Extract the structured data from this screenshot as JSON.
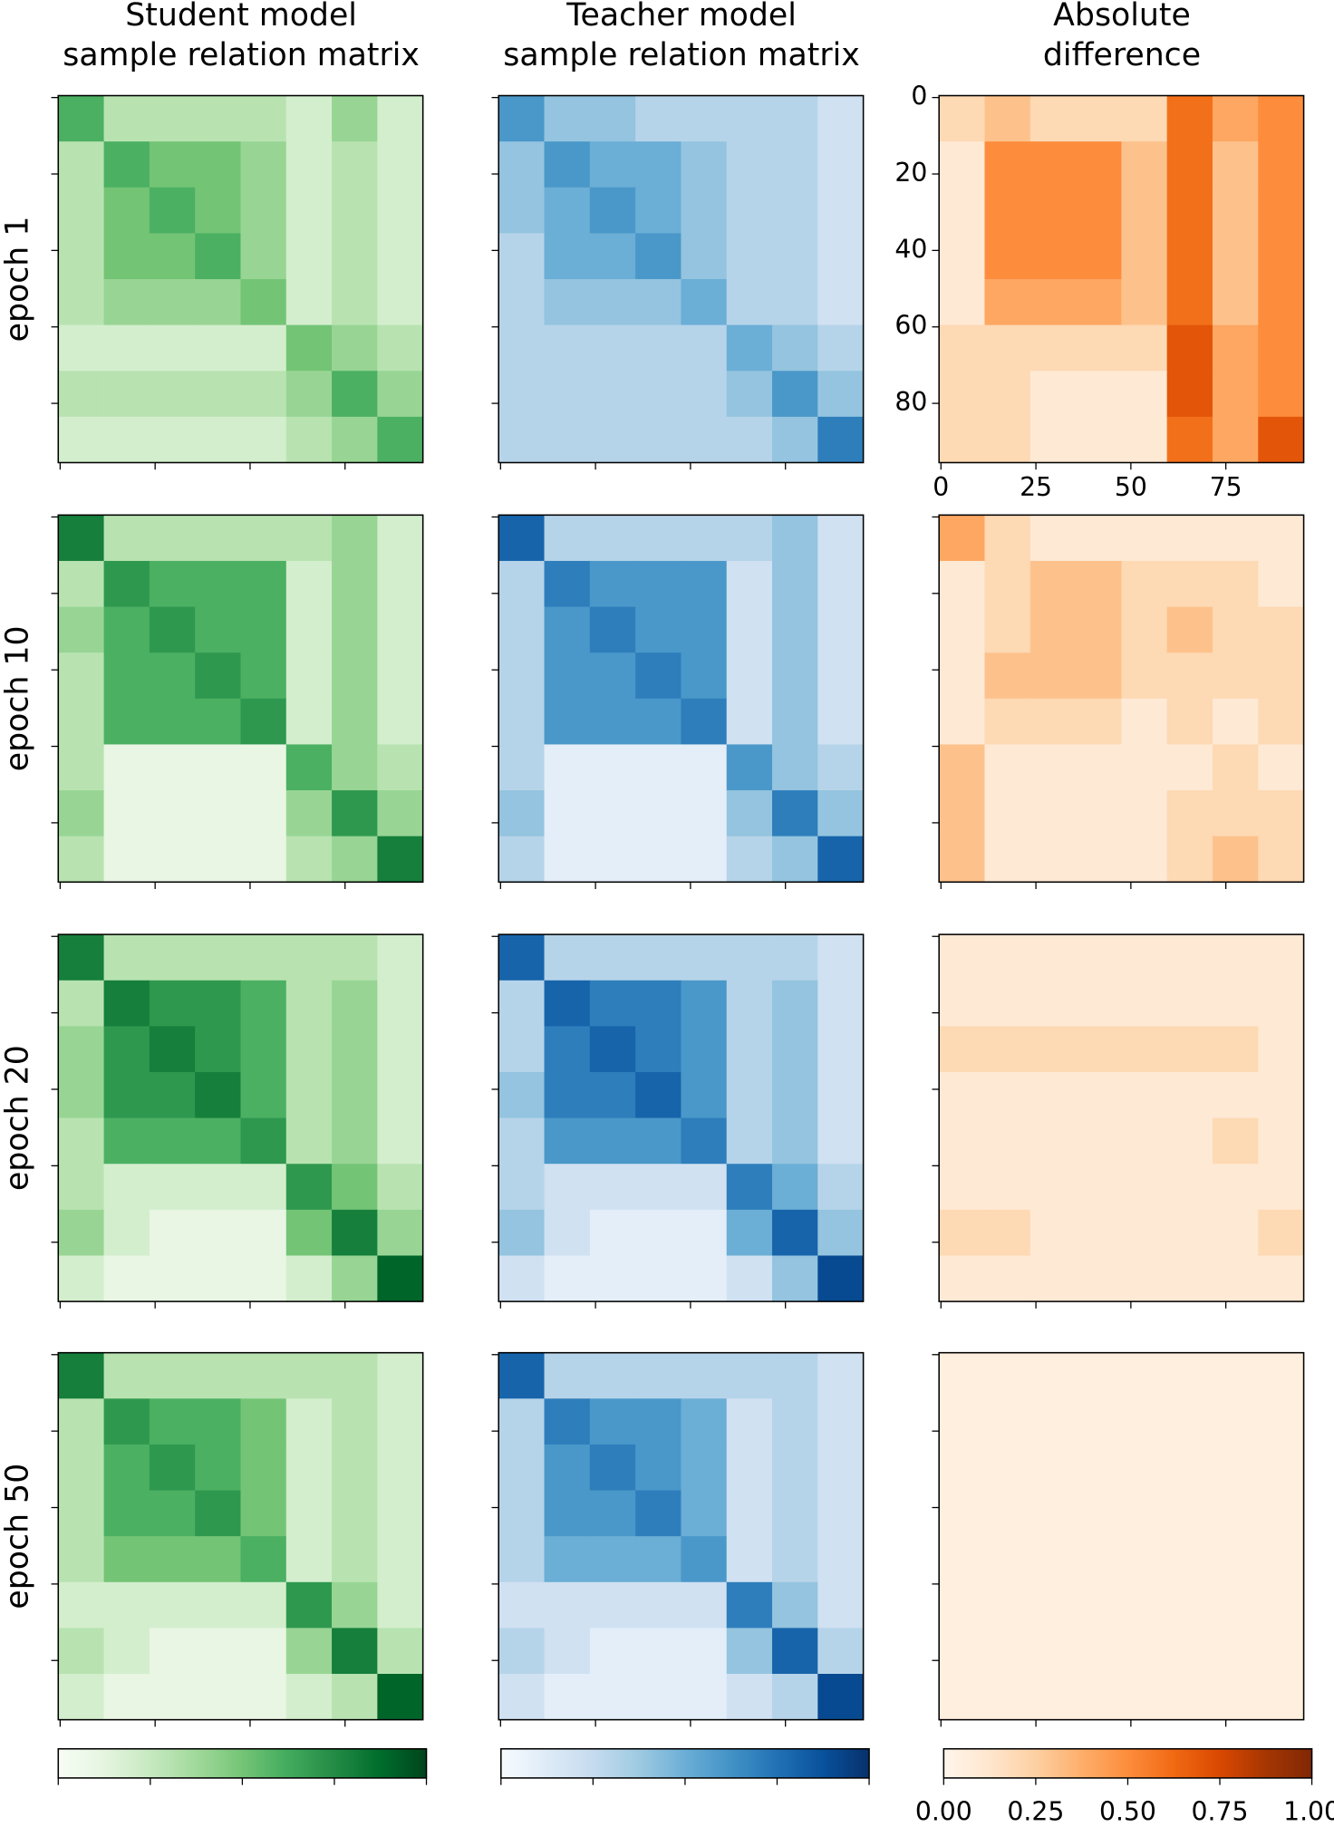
{
  "column_titles": [
    "Student model\nsample relation matrix",
    "Teacher model\nsample relation matrix",
    "Absolute\ndifference"
  ],
  "row_labels": [
    "epoch 1",
    "epoch 10",
    "epoch 20",
    "epoch 50"
  ],
  "chart_data": [
    {
      "type": "heatmap",
      "cmap": "Greens",
      "xlim": [
        -0.5,
        95.5
      ],
      "ylim": [
        95.5,
        -0.5
      ],
      "xticks": [
        0,
        25,
        50,
        75
      ],
      "yticks": [
        0,
        20,
        40,
        60,
        80
      ],
      "tick_labels": false,
      "values": [
        [
          0.6,
          0.3,
          0.3,
          0.3,
          0.3,
          0.2,
          0.4,
          0.2
        ],
        [
          0.3,
          0.6,
          0.5,
          0.5,
          0.4,
          0.2,
          0.3,
          0.2
        ],
        [
          0.3,
          0.5,
          0.6,
          0.5,
          0.4,
          0.2,
          0.3,
          0.2
        ],
        [
          0.3,
          0.5,
          0.5,
          0.6,
          0.4,
          0.2,
          0.3,
          0.2
        ],
        [
          0.3,
          0.4,
          0.4,
          0.4,
          0.5,
          0.2,
          0.3,
          0.2
        ],
        [
          0.2,
          0.2,
          0.2,
          0.2,
          0.2,
          0.5,
          0.4,
          0.3
        ],
        [
          0.3,
          0.3,
          0.3,
          0.3,
          0.3,
          0.4,
          0.6,
          0.4
        ],
        [
          0.2,
          0.2,
          0.2,
          0.2,
          0.2,
          0.3,
          0.4,
          0.6
        ]
      ]
    },
    {
      "type": "heatmap",
      "cmap": "Blues",
      "xlim": [
        -0.5,
        95.5
      ],
      "ylim": [
        95.5,
        -0.5
      ],
      "xticks": [
        0,
        25,
        50,
        75
      ],
      "yticks": [
        0,
        20,
        40,
        60,
        80
      ],
      "tick_labels": false,
      "values": [
        [
          0.6,
          0.4,
          0.4,
          0.3,
          0.3,
          0.3,
          0.3,
          0.2
        ],
        [
          0.4,
          0.6,
          0.5,
          0.5,
          0.4,
          0.3,
          0.3,
          0.2
        ],
        [
          0.4,
          0.5,
          0.6,
          0.5,
          0.4,
          0.3,
          0.3,
          0.2
        ],
        [
          0.3,
          0.5,
          0.5,
          0.6,
          0.4,
          0.3,
          0.3,
          0.2
        ],
        [
          0.3,
          0.4,
          0.4,
          0.4,
          0.5,
          0.3,
          0.3,
          0.2
        ],
        [
          0.3,
          0.3,
          0.3,
          0.3,
          0.3,
          0.5,
          0.4,
          0.3
        ],
        [
          0.3,
          0.3,
          0.3,
          0.3,
          0.3,
          0.4,
          0.6,
          0.4
        ],
        [
          0.3,
          0.3,
          0.3,
          0.3,
          0.3,
          0.3,
          0.4,
          0.7
        ]
      ]
    },
    {
      "type": "heatmap",
      "cmap": "Oranges",
      "xlim": [
        -0.5,
        95.5
      ],
      "ylim": [
        95.5,
        -0.5
      ],
      "xticks": [
        0,
        25,
        50,
        75
      ],
      "yticks": [
        0,
        20,
        40,
        60,
        80
      ],
      "tick_labels": true,
      "values": [
        [
          0.2,
          0.3,
          0.2,
          0.2,
          0.2,
          0.6,
          0.4,
          0.5
        ],
        [
          0.1,
          0.5,
          0.5,
          0.5,
          0.3,
          0.6,
          0.3,
          0.5
        ],
        [
          0.1,
          0.5,
          0.5,
          0.5,
          0.3,
          0.6,
          0.3,
          0.5
        ],
        [
          0.1,
          0.5,
          0.5,
          0.5,
          0.3,
          0.6,
          0.3,
          0.5
        ],
        [
          0.1,
          0.4,
          0.4,
          0.4,
          0.3,
          0.6,
          0.3,
          0.5
        ],
        [
          0.2,
          0.2,
          0.2,
          0.2,
          0.2,
          0.7,
          0.4,
          0.5
        ],
        [
          0.2,
          0.2,
          0.1,
          0.1,
          0.1,
          0.7,
          0.4,
          0.5
        ],
        [
          0.2,
          0.2,
          0.1,
          0.1,
          0.1,
          0.6,
          0.4,
          0.7
        ]
      ]
    },
    {
      "type": "heatmap",
      "cmap": "Greens",
      "xlim": [
        -0.5,
        95.5
      ],
      "ylim": [
        95.5,
        -0.5
      ],
      "xticks": [
        0,
        25,
        50,
        75
      ],
      "yticks": [
        0,
        20,
        40,
        60,
        80
      ],
      "tick_labels": false,
      "values": [
        [
          0.8,
          0.3,
          0.3,
          0.3,
          0.3,
          0.3,
          0.4,
          0.2
        ],
        [
          0.3,
          0.7,
          0.6,
          0.6,
          0.6,
          0.2,
          0.4,
          0.2
        ],
        [
          0.4,
          0.6,
          0.7,
          0.6,
          0.6,
          0.2,
          0.4,
          0.2
        ],
        [
          0.3,
          0.6,
          0.6,
          0.7,
          0.6,
          0.2,
          0.4,
          0.2
        ],
        [
          0.3,
          0.6,
          0.6,
          0.6,
          0.7,
          0.2,
          0.4,
          0.2
        ],
        [
          0.3,
          0.1,
          0.1,
          0.1,
          0.1,
          0.6,
          0.4,
          0.3
        ],
        [
          0.4,
          0.1,
          0.1,
          0.1,
          0.1,
          0.4,
          0.7,
          0.4
        ],
        [
          0.3,
          0.1,
          0.1,
          0.1,
          0.1,
          0.3,
          0.4,
          0.8
        ]
      ]
    },
    {
      "type": "heatmap",
      "cmap": "Blues",
      "xlim": [
        -0.5,
        95.5
      ],
      "ylim": [
        95.5,
        -0.5
      ],
      "xticks": [
        0,
        25,
        50,
        75
      ],
      "yticks": [
        0,
        20,
        40,
        60,
        80
      ],
      "tick_labels": false,
      "values": [
        [
          0.8,
          0.3,
          0.3,
          0.3,
          0.3,
          0.3,
          0.4,
          0.2
        ],
        [
          0.3,
          0.7,
          0.6,
          0.6,
          0.6,
          0.2,
          0.4,
          0.2
        ],
        [
          0.3,
          0.6,
          0.7,
          0.6,
          0.6,
          0.2,
          0.4,
          0.2
        ],
        [
          0.3,
          0.6,
          0.6,
          0.7,
          0.6,
          0.2,
          0.4,
          0.2
        ],
        [
          0.3,
          0.6,
          0.6,
          0.6,
          0.7,
          0.2,
          0.4,
          0.2
        ],
        [
          0.3,
          0.1,
          0.1,
          0.1,
          0.1,
          0.6,
          0.4,
          0.3
        ],
        [
          0.4,
          0.1,
          0.1,
          0.1,
          0.1,
          0.4,
          0.7,
          0.4
        ],
        [
          0.3,
          0.1,
          0.1,
          0.1,
          0.1,
          0.3,
          0.4,
          0.8
        ]
      ]
    },
    {
      "type": "heatmap",
      "cmap": "Oranges",
      "xlim": [
        -0.5,
        95.5
      ],
      "ylim": [
        95.5,
        -0.5
      ],
      "xticks": [
        0,
        25,
        50,
        75
      ],
      "yticks": [
        0,
        20,
        40,
        60,
        80
      ],
      "tick_labels": false,
      "values": [
        [
          0.4,
          0.2,
          0.1,
          0.1,
          0.1,
          0.1,
          0.1,
          0.1
        ],
        [
          0.1,
          0.2,
          0.3,
          0.3,
          0.2,
          0.2,
          0.2,
          0.1
        ],
        [
          0.1,
          0.2,
          0.3,
          0.3,
          0.2,
          0.3,
          0.2,
          0.2
        ],
        [
          0.1,
          0.3,
          0.3,
          0.3,
          0.2,
          0.2,
          0.2,
          0.2
        ],
        [
          0.1,
          0.2,
          0.2,
          0.2,
          0.1,
          0.2,
          0.1,
          0.2
        ],
        [
          0.3,
          0.1,
          0.1,
          0.1,
          0.1,
          0.1,
          0.2,
          0.1
        ],
        [
          0.3,
          0.1,
          0.1,
          0.1,
          0.1,
          0.2,
          0.2,
          0.2
        ],
        [
          0.3,
          0.1,
          0.1,
          0.1,
          0.1,
          0.2,
          0.3,
          0.2
        ]
      ]
    },
    {
      "type": "heatmap",
      "cmap": "Greens",
      "xlim": [
        -0.5,
        95.5
      ],
      "ylim": [
        95.5,
        -0.5
      ],
      "xticks": [
        0,
        25,
        50,
        75
      ],
      "yticks": [
        0,
        20,
        40,
        60,
        80
      ],
      "tick_labels": false,
      "values": [
        [
          0.8,
          0.3,
          0.3,
          0.3,
          0.3,
          0.3,
          0.3,
          0.2
        ],
        [
          0.3,
          0.8,
          0.7,
          0.7,
          0.6,
          0.3,
          0.4,
          0.2
        ],
        [
          0.4,
          0.7,
          0.8,
          0.7,
          0.6,
          0.3,
          0.4,
          0.2
        ],
        [
          0.4,
          0.7,
          0.7,
          0.8,
          0.6,
          0.3,
          0.4,
          0.2
        ],
        [
          0.3,
          0.6,
          0.6,
          0.6,
          0.7,
          0.3,
          0.4,
          0.2
        ],
        [
          0.3,
          0.2,
          0.2,
          0.2,
          0.2,
          0.7,
          0.5,
          0.3
        ],
        [
          0.4,
          0.2,
          0.1,
          0.1,
          0.1,
          0.5,
          0.8,
          0.4
        ],
        [
          0.2,
          0.1,
          0.1,
          0.1,
          0.1,
          0.2,
          0.4,
          0.9
        ]
      ]
    },
    {
      "type": "heatmap",
      "cmap": "Blues",
      "xlim": [
        -0.5,
        95.5
      ],
      "ylim": [
        95.5,
        -0.5
      ],
      "xticks": [
        0,
        25,
        50,
        75
      ],
      "yticks": [
        0,
        20,
        40,
        60,
        80
      ],
      "tick_labels": false,
      "values": [
        [
          0.8,
          0.3,
          0.3,
          0.3,
          0.3,
          0.3,
          0.3,
          0.2
        ],
        [
          0.3,
          0.8,
          0.7,
          0.7,
          0.6,
          0.3,
          0.4,
          0.2
        ],
        [
          0.3,
          0.7,
          0.8,
          0.7,
          0.6,
          0.3,
          0.4,
          0.2
        ],
        [
          0.4,
          0.7,
          0.7,
          0.8,
          0.6,
          0.3,
          0.4,
          0.2
        ],
        [
          0.3,
          0.6,
          0.6,
          0.6,
          0.7,
          0.3,
          0.4,
          0.2
        ],
        [
          0.3,
          0.2,
          0.2,
          0.2,
          0.2,
          0.7,
          0.5,
          0.3
        ],
        [
          0.4,
          0.2,
          0.1,
          0.1,
          0.1,
          0.5,
          0.8,
          0.4
        ],
        [
          0.2,
          0.1,
          0.1,
          0.1,
          0.1,
          0.2,
          0.4,
          0.9
        ]
      ]
    },
    {
      "type": "heatmap",
      "cmap": "Oranges",
      "xlim": [
        -0.5,
        95.5
      ],
      "ylim": [
        95.5,
        -0.5
      ],
      "xticks": [
        0,
        25,
        50,
        75
      ],
      "yticks": [
        0,
        20,
        40,
        60,
        80
      ],
      "tick_labels": false,
      "values": [
        [
          0.1,
          0.1,
          0.1,
          0.1,
          0.1,
          0.1,
          0.1,
          0.1
        ],
        [
          0.1,
          0.1,
          0.1,
          0.1,
          0.1,
          0.1,
          0.1,
          0.1
        ],
        [
          0.2,
          0.2,
          0.2,
          0.2,
          0.2,
          0.2,
          0.2,
          0.1
        ],
        [
          0.1,
          0.1,
          0.1,
          0.1,
          0.1,
          0.1,
          0.1,
          0.1
        ],
        [
          0.1,
          0.1,
          0.1,
          0.1,
          0.1,
          0.1,
          0.2,
          0.1
        ],
        [
          0.1,
          0.1,
          0.1,
          0.1,
          0.1,
          0.1,
          0.1,
          0.1
        ],
        [
          0.2,
          0.2,
          0.1,
          0.1,
          0.1,
          0.1,
          0.1,
          0.2
        ],
        [
          0.1,
          0.1,
          0.1,
          0.1,
          0.1,
          0.1,
          0.1,
          0.1
        ]
      ]
    },
    {
      "type": "heatmap",
      "cmap": "Greens",
      "xlim": [
        -0.5,
        95.5
      ],
      "ylim": [
        95.5,
        -0.5
      ],
      "xticks": [
        0,
        25,
        50,
        75
      ],
      "yticks": [
        0,
        20,
        40,
        60,
        80
      ],
      "tick_labels": false,
      "values": [
        [
          0.8,
          0.3,
          0.3,
          0.3,
          0.3,
          0.3,
          0.3,
          0.2
        ],
        [
          0.3,
          0.7,
          0.6,
          0.6,
          0.5,
          0.2,
          0.3,
          0.2
        ],
        [
          0.3,
          0.6,
          0.7,
          0.6,
          0.5,
          0.2,
          0.3,
          0.2
        ],
        [
          0.3,
          0.6,
          0.6,
          0.7,
          0.5,
          0.2,
          0.3,
          0.2
        ],
        [
          0.3,
          0.5,
          0.5,
          0.5,
          0.6,
          0.2,
          0.3,
          0.2
        ],
        [
          0.2,
          0.2,
          0.2,
          0.2,
          0.2,
          0.7,
          0.4,
          0.2
        ],
        [
          0.3,
          0.2,
          0.1,
          0.1,
          0.1,
          0.4,
          0.8,
          0.3
        ],
        [
          0.2,
          0.1,
          0.1,
          0.1,
          0.1,
          0.2,
          0.3,
          0.9
        ]
      ]
    },
    {
      "type": "heatmap",
      "cmap": "Blues",
      "xlim": [
        -0.5,
        95.5
      ],
      "ylim": [
        95.5,
        -0.5
      ],
      "xticks": [
        0,
        25,
        50,
        75
      ],
      "yticks": [
        0,
        20,
        40,
        60,
        80
      ],
      "tick_labels": false,
      "values": [
        [
          0.8,
          0.3,
          0.3,
          0.3,
          0.3,
          0.3,
          0.3,
          0.2
        ],
        [
          0.3,
          0.7,
          0.6,
          0.6,
          0.5,
          0.2,
          0.3,
          0.2
        ],
        [
          0.3,
          0.6,
          0.7,
          0.6,
          0.5,
          0.2,
          0.3,
          0.2
        ],
        [
          0.3,
          0.6,
          0.6,
          0.7,
          0.5,
          0.2,
          0.3,
          0.2
        ],
        [
          0.3,
          0.5,
          0.5,
          0.5,
          0.6,
          0.2,
          0.3,
          0.2
        ],
        [
          0.2,
          0.2,
          0.2,
          0.2,
          0.2,
          0.7,
          0.4,
          0.2
        ],
        [
          0.3,
          0.2,
          0.1,
          0.1,
          0.1,
          0.4,
          0.8,
          0.3
        ],
        [
          0.2,
          0.1,
          0.1,
          0.1,
          0.1,
          0.2,
          0.3,
          0.9
        ]
      ]
    },
    {
      "type": "heatmap",
      "cmap": "Oranges",
      "xlim": [
        -0.5,
        95.5
      ],
      "ylim": [
        95.5,
        -0.5
      ],
      "xticks": [
        0,
        25,
        50,
        75
      ],
      "yticks": [
        0,
        20,
        40,
        60,
        80
      ],
      "tick_labels": false,
      "values": [
        [
          0.05,
          0.05,
          0.05,
          0.05,
          0.05,
          0.05,
          0.05,
          0.05
        ],
        [
          0.05,
          0.05,
          0.05,
          0.05,
          0.05,
          0.05,
          0.05,
          0.05
        ],
        [
          0.05,
          0.05,
          0.05,
          0.05,
          0.05,
          0.05,
          0.05,
          0.05
        ],
        [
          0.05,
          0.05,
          0.05,
          0.05,
          0.05,
          0.05,
          0.05,
          0.05
        ],
        [
          0.05,
          0.05,
          0.05,
          0.05,
          0.05,
          0.05,
          0.05,
          0.05
        ],
        [
          0.05,
          0.05,
          0.05,
          0.05,
          0.05,
          0.05,
          0.05,
          0.05
        ],
        [
          0.05,
          0.05,
          0.05,
          0.05,
          0.05,
          0.05,
          0.05,
          0.05
        ],
        [
          0.05,
          0.05,
          0.05,
          0.05,
          0.05,
          0.05,
          0.05,
          0.05
        ]
      ]
    },
    {
      "type": "colorbar",
      "cmap": "Greens",
      "lim": [
        0,
        1
      ],
      "ticks": [
        0,
        0.25,
        0.5,
        0.75,
        1
      ],
      "tick_labels": false
    },
    {
      "type": "colorbar",
      "cmap": "Blues",
      "lim": [
        0,
        1
      ],
      "ticks": [
        0,
        0.25,
        0.5,
        0.75,
        1
      ],
      "tick_labels": false
    },
    {
      "type": "colorbar",
      "cmap": "Oranges",
      "lim": [
        0,
        1
      ],
      "tick_labels": true,
      "ticks": [
        {
          "value": 0,
          "label": "0.00"
        },
        {
          "value": 0.25,
          "label": "0.25"
        },
        {
          "value": 0.5,
          "label": "0.50"
        },
        {
          "value": 0.75,
          "label": "0.75"
        },
        {
          "value": 1,
          "label": "1.00"
        }
      ]
    }
  ]
}
